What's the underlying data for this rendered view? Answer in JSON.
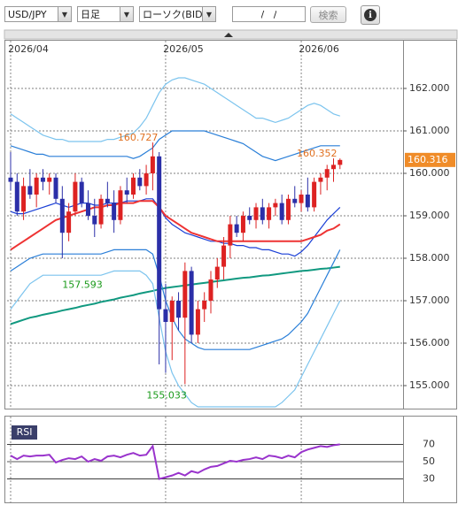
{
  "toolbar": {
    "pair": "USD/JPY",
    "period": "日足",
    "chart_kind": "ローソク(BID)",
    "date": "/   /",
    "search": "検索",
    "info": "i"
  },
  "chart_data": [
    {
      "type": "candlestick",
      "categories": [
        "2026/04",
        null,
        null,
        null,
        null,
        null,
        null,
        null,
        null,
        null,
        null,
        null,
        null,
        null,
        null,
        null,
        null,
        null,
        null,
        null,
        null,
        null,
        null,
        null,
        "2026/05",
        null,
        null,
        null,
        null,
        null,
        null,
        null,
        null,
        null,
        null,
        null,
        null,
        null,
        null,
        null,
        null,
        null,
        null,
        null,
        null,
        "2026/06",
        null,
        null,
        null,
        null,
        null,
        null
      ],
      "open": [
        159.9,
        159.8,
        159.1,
        159.7,
        159.5,
        159.9,
        159.8,
        159.9,
        159.4,
        158.6,
        159.1,
        159.8,
        159.3,
        159.0,
        158.8,
        159.4,
        159.3,
        158.9,
        159.6,
        159.5,
        159.9,
        159.7,
        160.0,
        160.4,
        156.8,
        156.5,
        157.0,
        156.6,
        157.7,
        156.2,
        156.8,
        157.0,
        157.5,
        157.8,
        158.3,
        158.8,
        158.6,
        159.0,
        158.9,
        159.2,
        158.9,
        159.2,
        159.3,
        158.9,
        159.4,
        159.3,
        159.5,
        159.2,
        159.8,
        159.9,
        160.1,
        160.2
      ],
      "high": [
        160.5,
        160.0,
        159.9,
        160.1,
        160.0,
        160.1,
        160.0,
        160.0,
        159.7,
        159.3,
        160.0,
        159.9,
        159.6,
        159.4,
        159.5,
        159.8,
        159.6,
        159.7,
        159.9,
        160.0,
        160.1,
        160.2,
        160.727,
        160.5,
        157.4,
        157.1,
        157.2,
        157.9,
        157.8,
        157.0,
        157.2,
        157.7,
        158.0,
        158.5,
        159.0,
        159.0,
        159.1,
        159.2,
        159.3,
        159.4,
        159.3,
        159.4,
        159.5,
        159.5,
        159.7,
        159.6,
        159.9,
        159.9,
        160.0,
        160.2,
        160.352,
        160.35
      ],
      "low": [
        159.6,
        159.0,
        158.9,
        159.4,
        159.2,
        159.6,
        159.5,
        159.3,
        158.0,
        158.4,
        159.0,
        159.2,
        158.9,
        158.5,
        158.7,
        159.2,
        158.6,
        158.8,
        159.3,
        159.4,
        159.6,
        159.5,
        159.6,
        155.5,
        155.3,
        155.6,
        156.3,
        155.033,
        156.0,
        156.0,
        156.5,
        156.7,
        157.3,
        157.5,
        158.0,
        158.5,
        158.4,
        158.8,
        158.7,
        158.8,
        158.7,
        159.0,
        158.8,
        158.8,
        159.2,
        159.1,
        159.1,
        159.1,
        159.5,
        159.6,
        159.8,
        160.1
      ],
      "close": [
        159.8,
        159.1,
        159.7,
        159.5,
        159.9,
        159.8,
        159.9,
        159.4,
        158.6,
        159.1,
        159.8,
        159.3,
        159.0,
        158.8,
        159.4,
        159.3,
        158.9,
        159.6,
        159.5,
        159.9,
        159.7,
        160.0,
        160.4,
        156.8,
        156.5,
        157.0,
        156.6,
        157.7,
        156.2,
        156.8,
        157.0,
        157.5,
        157.8,
        158.3,
        158.8,
        158.6,
        159.0,
        158.9,
        159.2,
        158.9,
        159.2,
        159.3,
        158.9,
        159.4,
        159.3,
        159.5,
        159.2,
        159.8,
        159.9,
        160.1,
        160.2,
        160.316
      ],
      "up_color": "#dd2222",
      "down_color": "#2b2fa8",
      "overlays": [
        {
          "color": "#7cc4ee",
          "values": [
            161.4,
            161.3,
            161.2,
            161.1,
            161.0,
            160.9,
            160.85,
            160.8,
            160.8,
            160.75,
            160.75,
            160.75,
            160.75,
            160.75,
            160.75,
            160.8,
            160.8,
            160.85,
            160.9,
            160.95,
            161.1,
            161.3,
            161.6,
            161.9,
            162.1,
            162.2,
            162.25,
            162.25,
            162.2,
            162.15,
            162.1,
            162.0,
            161.9,
            161.8,
            161.7,
            161.6,
            161.5,
            161.4,
            161.3,
            161.3,
            161.25,
            161.2,
            161.25,
            161.3,
            161.4,
            161.5,
            161.6,
            161.65,
            161.6,
            161.5,
            161.4,
            161.35
          ]
        },
        {
          "color": "#2a7fd8",
          "values": [
            160.65,
            160.6,
            160.55,
            160.5,
            160.45,
            160.45,
            160.4,
            160.4,
            160.4,
            160.4,
            160.4,
            160.4,
            160.4,
            160.4,
            160.4,
            160.4,
            160.4,
            160.4,
            160.4,
            160.35,
            160.4,
            160.5,
            160.6,
            160.8,
            160.9,
            161.0,
            161.0,
            161.0,
            161.0,
            161.0,
            161.0,
            160.95,
            160.9,
            160.85,
            160.8,
            160.75,
            160.7,
            160.6,
            160.5,
            160.4,
            160.35,
            160.3,
            160.35,
            160.4,
            160.45,
            160.5,
            160.55,
            160.6,
            160.65,
            160.65,
            160.65,
            160.65
          ]
        },
        {
          "color": "#1a3fd6",
          "values": [
            159.1,
            159.05,
            159.05,
            159.1,
            159.15,
            159.2,
            159.25,
            159.3,
            159.25,
            159.2,
            159.25,
            159.3,
            159.3,
            159.25,
            159.25,
            159.3,
            159.3,
            159.3,
            159.35,
            159.35,
            159.35,
            159.4,
            159.4,
            159.2,
            158.95,
            158.8,
            158.7,
            158.6,
            158.55,
            158.5,
            158.45,
            158.4,
            158.4,
            158.35,
            158.35,
            158.3,
            158.3,
            158.25,
            158.25,
            158.2,
            158.2,
            158.15,
            158.1,
            158.1,
            158.05,
            158.15,
            158.3,
            158.5,
            158.7,
            158.9,
            159.05,
            159.2
          ]
        },
        {
          "color": "#ee3333",
          "values": [
            158.2,
            158.3,
            158.4,
            158.5,
            158.6,
            158.7,
            158.8,
            158.9,
            158.95,
            159.0,
            159.05,
            159.1,
            159.15,
            159.2,
            159.2,
            159.25,
            159.25,
            159.3,
            159.3,
            159.3,
            159.35,
            159.35,
            159.35,
            159.2,
            159.0,
            158.9,
            158.8,
            158.7,
            158.6,
            158.55,
            158.5,
            158.45,
            158.4,
            158.4,
            158.4,
            158.4,
            158.4,
            158.4,
            158.4,
            158.4,
            158.4,
            158.4,
            158.4,
            158.4,
            158.4,
            158.4,
            158.45,
            158.5,
            158.55,
            158.65,
            158.7,
            158.8
          ]
        },
        {
          "color": "#119980",
          "values": [
            156.45,
            156.5,
            156.55,
            156.6,
            156.63,
            156.67,
            156.7,
            156.73,
            156.77,
            156.8,
            156.83,
            156.87,
            156.9,
            156.93,
            156.97,
            157.0,
            157.03,
            157.07,
            157.1,
            157.13,
            157.17,
            157.2,
            157.23,
            157.27,
            157.3,
            157.32,
            157.34,
            157.36,
            157.38,
            157.4,
            157.42,
            157.44,
            157.46,
            157.48,
            157.5,
            157.52,
            157.54,
            157.55,
            157.57,
            157.59,
            157.6,
            157.62,
            157.64,
            157.66,
            157.68,
            157.7,
            157.71,
            157.73,
            157.75,
            157.76,
            157.78,
            157.8
          ]
        },
        {
          "color": "#2a7fd8",
          "values": [
            157.7,
            157.8,
            157.9,
            158.0,
            158.05,
            158.1,
            158.1,
            158.1,
            158.1,
            158.1,
            158.1,
            158.1,
            158.1,
            158.1,
            158.1,
            158.15,
            158.2,
            158.2,
            158.2,
            158.2,
            158.2,
            158.2,
            158.1,
            157.6,
            157.0,
            156.6,
            156.3,
            156.1,
            156.0,
            155.9,
            155.85,
            155.85,
            155.85,
            155.85,
            155.85,
            155.85,
            155.85,
            155.85,
            155.9,
            155.95,
            156.0,
            156.05,
            156.1,
            156.2,
            156.35,
            156.5,
            156.7,
            157.0,
            157.3,
            157.6,
            157.9,
            158.2
          ]
        },
        {
          "color": "#7cc4ee",
          "values": [
            156.8,
            157.0,
            157.2,
            157.4,
            157.5,
            157.6,
            157.6,
            157.6,
            157.6,
            157.6,
            157.6,
            157.6,
            157.6,
            157.6,
            157.6,
            157.65,
            157.7,
            157.7,
            157.7,
            157.7,
            157.7,
            157.6,
            157.4,
            156.6,
            155.8,
            155.3,
            155.0,
            154.8,
            154.6,
            154.5,
            154.5,
            154.5,
            154.5,
            154.5,
            154.5,
            154.5,
            154.5,
            154.5,
            154.5,
            154.5,
            154.5,
            154.5,
            154.6,
            154.75,
            154.9,
            155.2,
            155.5,
            155.8,
            156.1,
            156.4,
            156.7,
            157.0
          ]
        }
      ],
      "high_color": "#e07020",
      "low_color": "#1a9a1a",
      "marker": {
        "value": 157.593,
        "color": "#1a9a1a"
      },
      "current_color": "#f08c28",
      "ylim": [
        154.5,
        162.75
      ],
      "yticks": [
        {
          "value": 155,
          "label": "155.000"
        },
        {
          "value": 156,
          "label": "156.000"
        },
        {
          "value": 157,
          "label": "157.000"
        },
        {
          "value": 158,
          "label": "158.000"
        },
        {
          "value": 159,
          "label": "159.000"
        },
        {
          "value": 160,
          "label": "160.000"
        },
        {
          "value": 161,
          "label": "161.000"
        },
        {
          "value": 162,
          "label": "162.000"
        }
      ],
      "grid": true
    },
    {
      "type": "line",
      "title": "RSI",
      "color": "#9933cc",
      "values": [
        57,
        53,
        57,
        56,
        57,
        57,
        58,
        49,
        52,
        54,
        53,
        56,
        50,
        53,
        51,
        56,
        57,
        55,
        58,
        60,
        57,
        58,
        68,
        30,
        32,
        34,
        37,
        34,
        39,
        37,
        41,
        44,
        45,
        48,
        51,
        50,
        52,
        53,
        55,
        53,
        57,
        56,
        54,
        57,
        55,
        61,
        64,
        66,
        68,
        67,
        69,
        70
      ],
      "ylim": [
        5,
        95
      ],
      "yticks": [
        30,
        50,
        70
      ],
      "grid": true
    }
  ]
}
